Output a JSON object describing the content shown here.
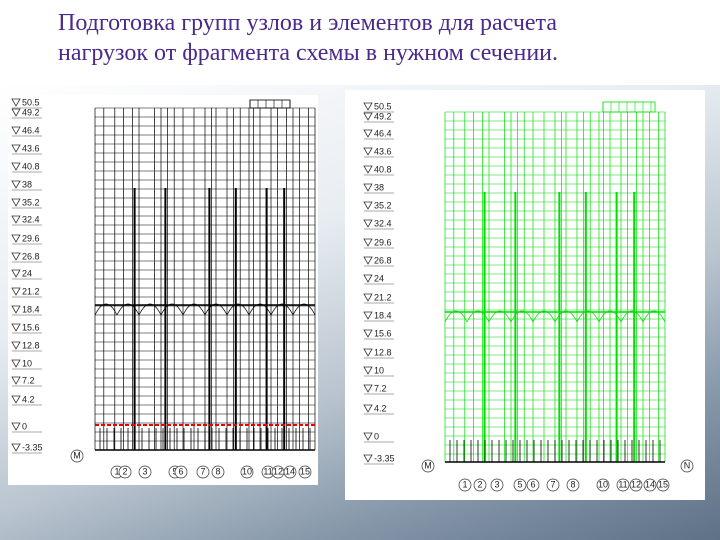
{
  "title": {
    "line1": "Подготовка групп узлов и элементов для расчета",
    "line2": "нагрузок от фрагмента схемы в нужном сечении."
  },
  "left_panel": {
    "levels": [
      "50.5",
      "49.2",
      "46.4",
      "43.6",
      "40.8",
      "38",
      "35.2",
      "32.4",
      "29.6",
      "26.8",
      "24",
      "21.2",
      "18.4",
      "15.6",
      "12.8",
      "10",
      "7.2",
      "4.2",
      "0",
      "-3.35"
    ],
    "axes": [
      "1",
      "2",
      "3",
      "5",
      "6",
      "7",
      "8",
      "10",
      "11",
      "12",
      "14",
      "15"
    ],
    "side_axes": [
      "M"
    ]
  },
  "right_panel": {
    "levels": [
      "50.5",
      "49.2",
      "46.4",
      "43.6",
      "40.8",
      "38",
      "35.2",
      "32.4",
      "29.6",
      "26.8",
      "24",
      "21.2",
      "18.4",
      "15.6",
      "12.8",
      "10",
      "7.2",
      "4.2",
      "0",
      "-3.35"
    ],
    "axes": [
      "1",
      "2",
      "3",
      "5",
      "6",
      "7",
      "8",
      "10",
      "11",
      "12",
      "14",
      "15"
    ],
    "side_axes": [
      "M",
      "N"
    ]
  }
}
